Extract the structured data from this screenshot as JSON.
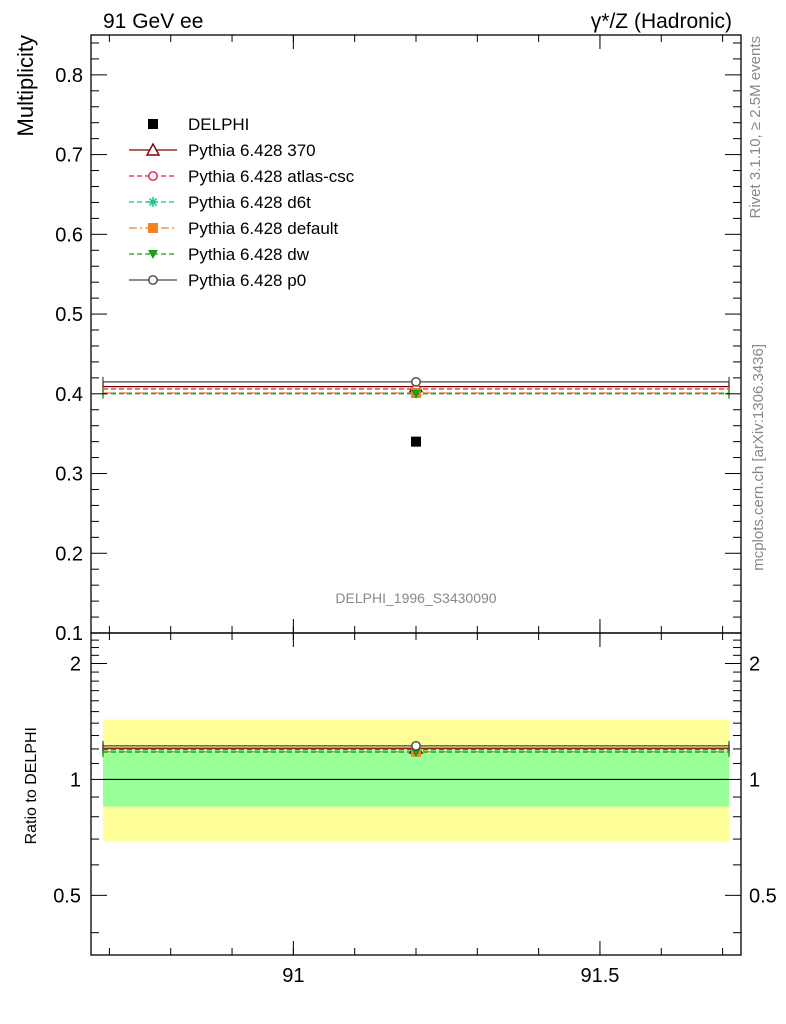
{
  "header": {
    "left_title": "91 GeV ee",
    "right_title": "γ*/Z (Hadronic)"
  },
  "side_labels": {
    "rivet": "Rivet 3.1.10, ≥ 2.5M events",
    "mcplots": "mcplots.cern.ch [arXiv:1306.3436]"
  },
  "watermark": "DELPHI_1996_S3430090",
  "chart_data": [
    {
      "type": "scatter",
      "panel": "main",
      "ylabel": "Multiplicity",
      "xlim": [
        90.67,
        91.73
      ],
      "ylim": [
        0.1,
        0.85
      ],
      "yticks": [
        0.1,
        0.2,
        0.3,
        0.4,
        0.5,
        0.6,
        0.7,
        0.8
      ],
      "ytick_labels": [
        "0.1",
        "0.2",
        "0.3",
        "0.4",
        "0.5",
        "0.6",
        "0.7",
        "0.8"
      ],
      "x_bin": [
        90.67,
        91.73
      ],
      "x_center": 91.2,
      "legend_position": "top-left",
      "series": [
        {
          "name": "DELPHI",
          "value": 0.34,
          "color": "#000000",
          "marker": "square-filled",
          "style": "none"
        },
        {
          "name": "Pythia 6.428 370",
          "value": 0.409,
          "color": "#7f0000",
          "marker": "triangle-open",
          "style": "solid"
        },
        {
          "name": "Pythia 6.428 atlas-csc",
          "value": 0.406,
          "color": "#e3204a",
          "marker": "circle-open",
          "style": "dashed"
        },
        {
          "name": "Pythia 6.428 d6t",
          "value": 0.401,
          "color": "#19c38a",
          "marker": "star",
          "style": "dashed"
        },
        {
          "name": "Pythia 6.428 default",
          "value": 0.401,
          "color": "#f58220",
          "marker": "square-filled",
          "style": "dashdot"
        },
        {
          "name": "Pythia 6.428 dw",
          "value": 0.4,
          "color": "#1a9e1a",
          "marker": "triangle-down-filled",
          "style": "dashed"
        },
        {
          "name": "Pythia 6.428 p0",
          "value": 0.415,
          "color": "#444444",
          "marker": "circle-open",
          "style": "solid"
        }
      ]
    },
    {
      "type": "scatter",
      "panel": "ratio",
      "ylabel": "Ratio to DELPHI",
      "xlim": [
        90.67,
        91.73
      ],
      "ylim": [
        0.35,
        2.4
      ],
      "log_y": true,
      "yticks": [
        0.5,
        1,
        2
      ],
      "ytick_labels": [
        "0.5",
        "1",
        "2"
      ],
      "xticks": [
        91,
        91.5
      ],
      "xtick_labels": [
        "91",
        "91.5"
      ],
      "bands": [
        {
          "lo": 0.69,
          "hi": 1.43,
          "color": "#ffff99"
        },
        {
          "lo": 0.85,
          "hi": 1.2,
          "color": "#99ff99"
        }
      ],
      "reference": 1,
      "series": [
        {
          "name": "Pythia 6.428 370",
          "value": 1.205,
          "color": "#7f0000",
          "marker": "triangle-open",
          "style": "solid"
        },
        {
          "name": "Pythia 6.428 atlas-csc",
          "value": 1.195,
          "color": "#e3204a",
          "marker": "circle-open",
          "style": "dashed"
        },
        {
          "name": "Pythia 6.428 d6t",
          "value": 1.18,
          "color": "#19c38a",
          "marker": "star",
          "style": "dashed"
        },
        {
          "name": "Pythia 6.428 default",
          "value": 1.18,
          "color": "#f58220",
          "marker": "square-filled",
          "style": "dashdot"
        },
        {
          "name": "Pythia 6.428 dw",
          "value": 1.177,
          "color": "#1a9e1a",
          "marker": "triangle-down-filled",
          "style": "dashed"
        },
        {
          "name": "Pythia 6.428 p0",
          "value": 1.222,
          "color": "#444444",
          "marker": "circle-open",
          "style": "solid"
        }
      ]
    }
  ]
}
